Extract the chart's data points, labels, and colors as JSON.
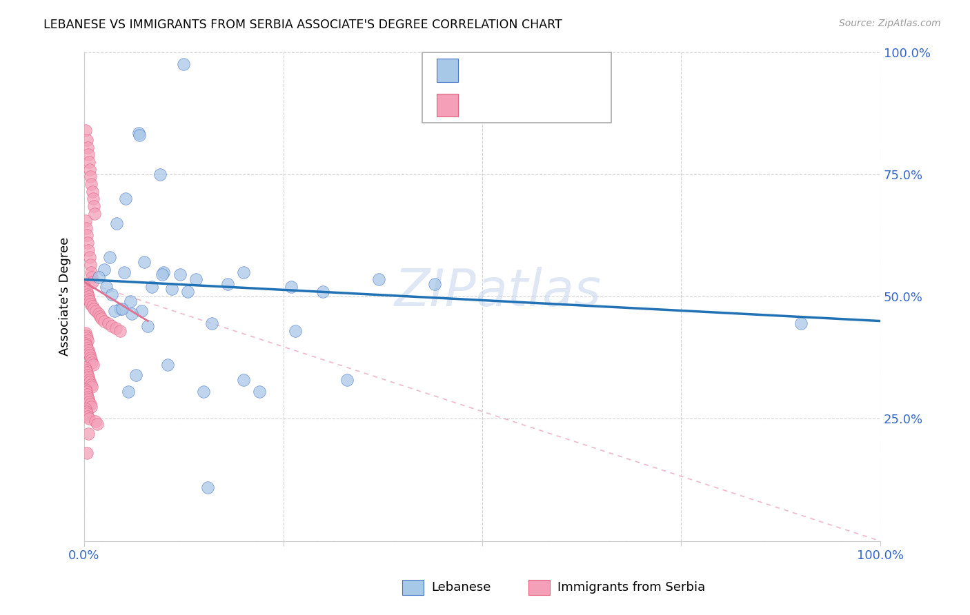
{
  "title": "LEBANESE VS IMMIGRANTS FROM SERBIA ASSOCIATE'S DEGREE CORRELATION CHART",
  "source": "Source: ZipAtlas.com",
  "ylabel": "Associate's Degree",
  "watermark": "ZIPatlas",
  "xlim": [
    0,
    100
  ],
  "ylim": [
    0,
    100
  ],
  "legend_label1": "Lebanese",
  "legend_label2": "Immigrants from Serbia",
  "color_blue": "#a8c8e8",
  "color_pink": "#f4a0b8",
  "color_blue_dark": "#4472c4",
  "color_pink_dark": "#e06080",
  "color_blue_line": "#2171b5",
  "color_pink_line": "#e07090",
  "blue_scatter_x": [
    12.5,
    6.8,
    6.9,
    9.5,
    5.2,
    4.1,
    3.2,
    2.5,
    1.8,
    5.0,
    7.5,
    10.0,
    12.0,
    14.0,
    18.0,
    20.0,
    26.0,
    30.0,
    37.0,
    44.0,
    2.8,
    3.5,
    5.8,
    7.2,
    4.5,
    3.8,
    8.5,
    11.0,
    9.8,
    13.0,
    16.0,
    8.0,
    6.0,
    4.8,
    6.5,
    10.5,
    20.0,
    26.5,
    33.0,
    90.0,
    5.5,
    15.0,
    22.0,
    15.5
  ],
  "blue_scatter_y": [
    97.5,
    83.5,
    83.0,
    75.0,
    70.0,
    65.0,
    58.0,
    55.5,
    54.0,
    55.0,
    57.0,
    55.0,
    54.5,
    53.5,
    52.5,
    55.0,
    52.0,
    51.0,
    53.5,
    52.5,
    52.0,
    50.5,
    49.0,
    47.0,
    47.5,
    47.0,
    52.0,
    51.5,
    54.5,
    51.0,
    44.5,
    44.0,
    46.5,
    47.5,
    34.0,
    36.0,
    33.0,
    43.0,
    33.0,
    44.5,
    30.5,
    30.5,
    30.5,
    11.0
  ],
  "pink_scatter_x": [
    0.2,
    0.3,
    0.4,
    0.5,
    0.6,
    0.7,
    0.8,
    0.9,
    1.0,
    1.1,
    1.2,
    1.3,
    0.15,
    0.25,
    0.35,
    0.45,
    0.55,
    0.65,
    0.75,
    0.85,
    0.95,
    1.05,
    0.1,
    0.2,
    0.3,
    0.4,
    0.5,
    0.6,
    0.7,
    0.8,
    1.0,
    1.2,
    1.5,
    1.8,
    2.0,
    2.2,
    2.5,
    3.0,
    3.5,
    4.0,
    4.5,
    0.15,
    0.25,
    0.35,
    0.45,
    0.18,
    0.28,
    0.38,
    0.48,
    0.58,
    0.68,
    0.78,
    0.88,
    0.98,
    1.08,
    0.12,
    0.22,
    0.32,
    0.42,
    0.52,
    0.62,
    0.72,
    0.82,
    0.92,
    0.14,
    0.24,
    0.34,
    0.44,
    0.54,
    0.64,
    0.74,
    0.84,
    0.16,
    0.26,
    0.36,
    0.46,
    0.56,
    1.4,
    1.6,
    0.5,
    0.3
  ],
  "pink_scatter_y": [
    84.0,
    82.0,
    80.5,
    79.0,
    77.5,
    76.0,
    74.5,
    73.0,
    71.5,
    70.0,
    68.5,
    67.0,
    65.5,
    64.0,
    62.5,
    61.0,
    59.5,
    58.0,
    56.5,
    55.0,
    54.0,
    53.0,
    52.0,
    51.5,
    51.0,
    50.5,
    50.0,
    49.5,
    49.0,
    48.5,
    48.0,
    47.5,
    47.0,
    46.5,
    46.0,
    45.5,
    45.0,
    44.5,
    44.0,
    43.5,
    43.0,
    42.5,
    42.0,
    41.5,
    41.0,
    40.5,
    40.0,
    39.5,
    39.0,
    38.5,
    38.0,
    37.5,
    37.0,
    36.5,
    36.0,
    35.5,
    35.0,
    34.5,
    34.0,
    33.5,
    33.0,
    32.5,
    32.0,
    31.5,
    31.0,
    30.5,
    30.0,
    29.5,
    29.0,
    28.5,
    28.0,
    27.5,
    27.0,
    26.5,
    26.0,
    25.5,
    25.0,
    24.5,
    24.0,
    22.0,
    18.0
  ],
  "blue_line_x": [
    0,
    100
  ],
  "blue_line_y": [
    53.5,
    45.0
  ],
  "pink_solid_line_x": [
    0,
    8
  ],
  "pink_solid_line_y": [
    53.0,
    45.0
  ],
  "pink_dash_line_x": [
    0,
    100
  ],
  "pink_dash_line_y": [
    53.0,
    0.0
  ]
}
